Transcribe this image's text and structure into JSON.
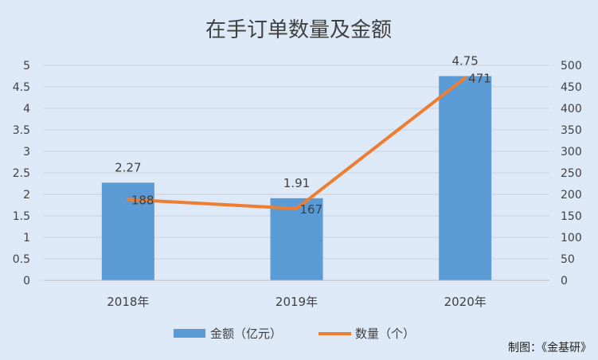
{
  "chart_data": {
    "type": "bar+line",
    "title": "在手订单数量及金额",
    "categories": [
      "2018年",
      "2019年",
      "2020年"
    ],
    "series": [
      {
        "name": "金额（亿元）",
        "type": "bar",
        "axis": "left",
        "values": [
          2.27,
          1.91,
          4.75
        ],
        "color": "#5b9bd5"
      },
      {
        "name": "数量（个）",
        "type": "line",
        "axis": "right",
        "values": [
          188,
          167,
          471
        ],
        "color": "#ed7d31"
      }
    ],
    "y_left": {
      "ylim": [
        0,
        5
      ],
      "ticks": [
        "0",
        "0.5",
        "1",
        "1.5",
        "2",
        "2.5",
        "3",
        "3.5",
        "4",
        "4.5",
        "5"
      ]
    },
    "y_right": {
      "ylim": [
        0,
        500
      ],
      "ticks": [
        "0",
        "50",
        "100",
        "150",
        "200",
        "250",
        "300",
        "350",
        "400",
        "450",
        "500"
      ]
    },
    "grid": true,
    "legend": "bottom"
  },
  "credit": "制图：《金基研》"
}
